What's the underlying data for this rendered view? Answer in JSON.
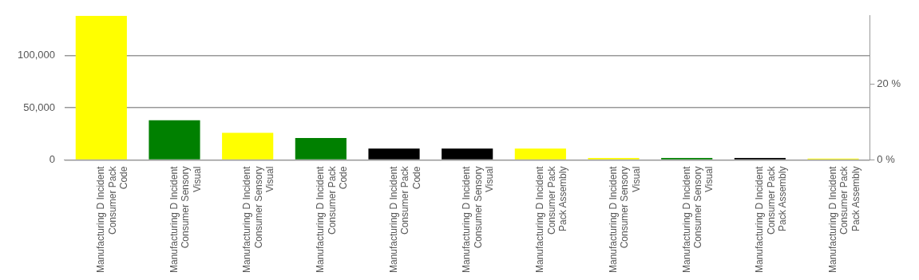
{
  "chart_data": {
    "type": "bar",
    "categories": [
      "Manufacturing D Incident\nConsumer Pack\nCode",
      "Manufacturing D Incident\nConsumer Sensory\nVisual",
      "Manufacturing D Incident\nConsumer Sensory\nVisual",
      "Manufacturing D Incident\nConsumer Pack\nCode",
      "Manufacturing D Incident\nConsumer Pack\nCode",
      "Manufacturing D Incident\nConsumer Sensory\nVisual",
      "Manufacturing D Incident\nConsumer Pack\nPack Assembly",
      "Manufacturing D Incident\nConsumer Sensory\nVisual",
      "Manufacturing D Incident\nConsumer Sensory\nVisual",
      "Manufacturing D Incident\nConsumer Pack\nPack Assembly",
      "Manufacturing D Incident\nConsumer Pack\nPack Assembly"
    ],
    "values": [
      138000,
      38000,
      26000,
      21000,
      11000,
      11000,
      11000,
      2000,
      2000,
      2000,
      1500
    ],
    "colors": [
      "#ffff00",
      "#008000",
      "#ffff00",
      "#008000",
      "#000000",
      "#000000",
      "#ffff00",
      "#ffff00",
      "#008000",
      "#000000",
      "#ffff00"
    ],
    "ylim": [
      0,
      138000
    ],
    "yticks": [
      {
        "value": 0,
        "label": "0"
      },
      {
        "value": 50000,
        "label": "50,000"
      },
      {
        "value": 100000,
        "label": "100,000"
      }
    ],
    "y2lim": [
      0,
      38
    ],
    "y2ticks": [
      {
        "value": 0,
        "label": "0 %"
      },
      {
        "value": 20,
        "label": "20 %"
      }
    ],
    "grid": "y"
  }
}
